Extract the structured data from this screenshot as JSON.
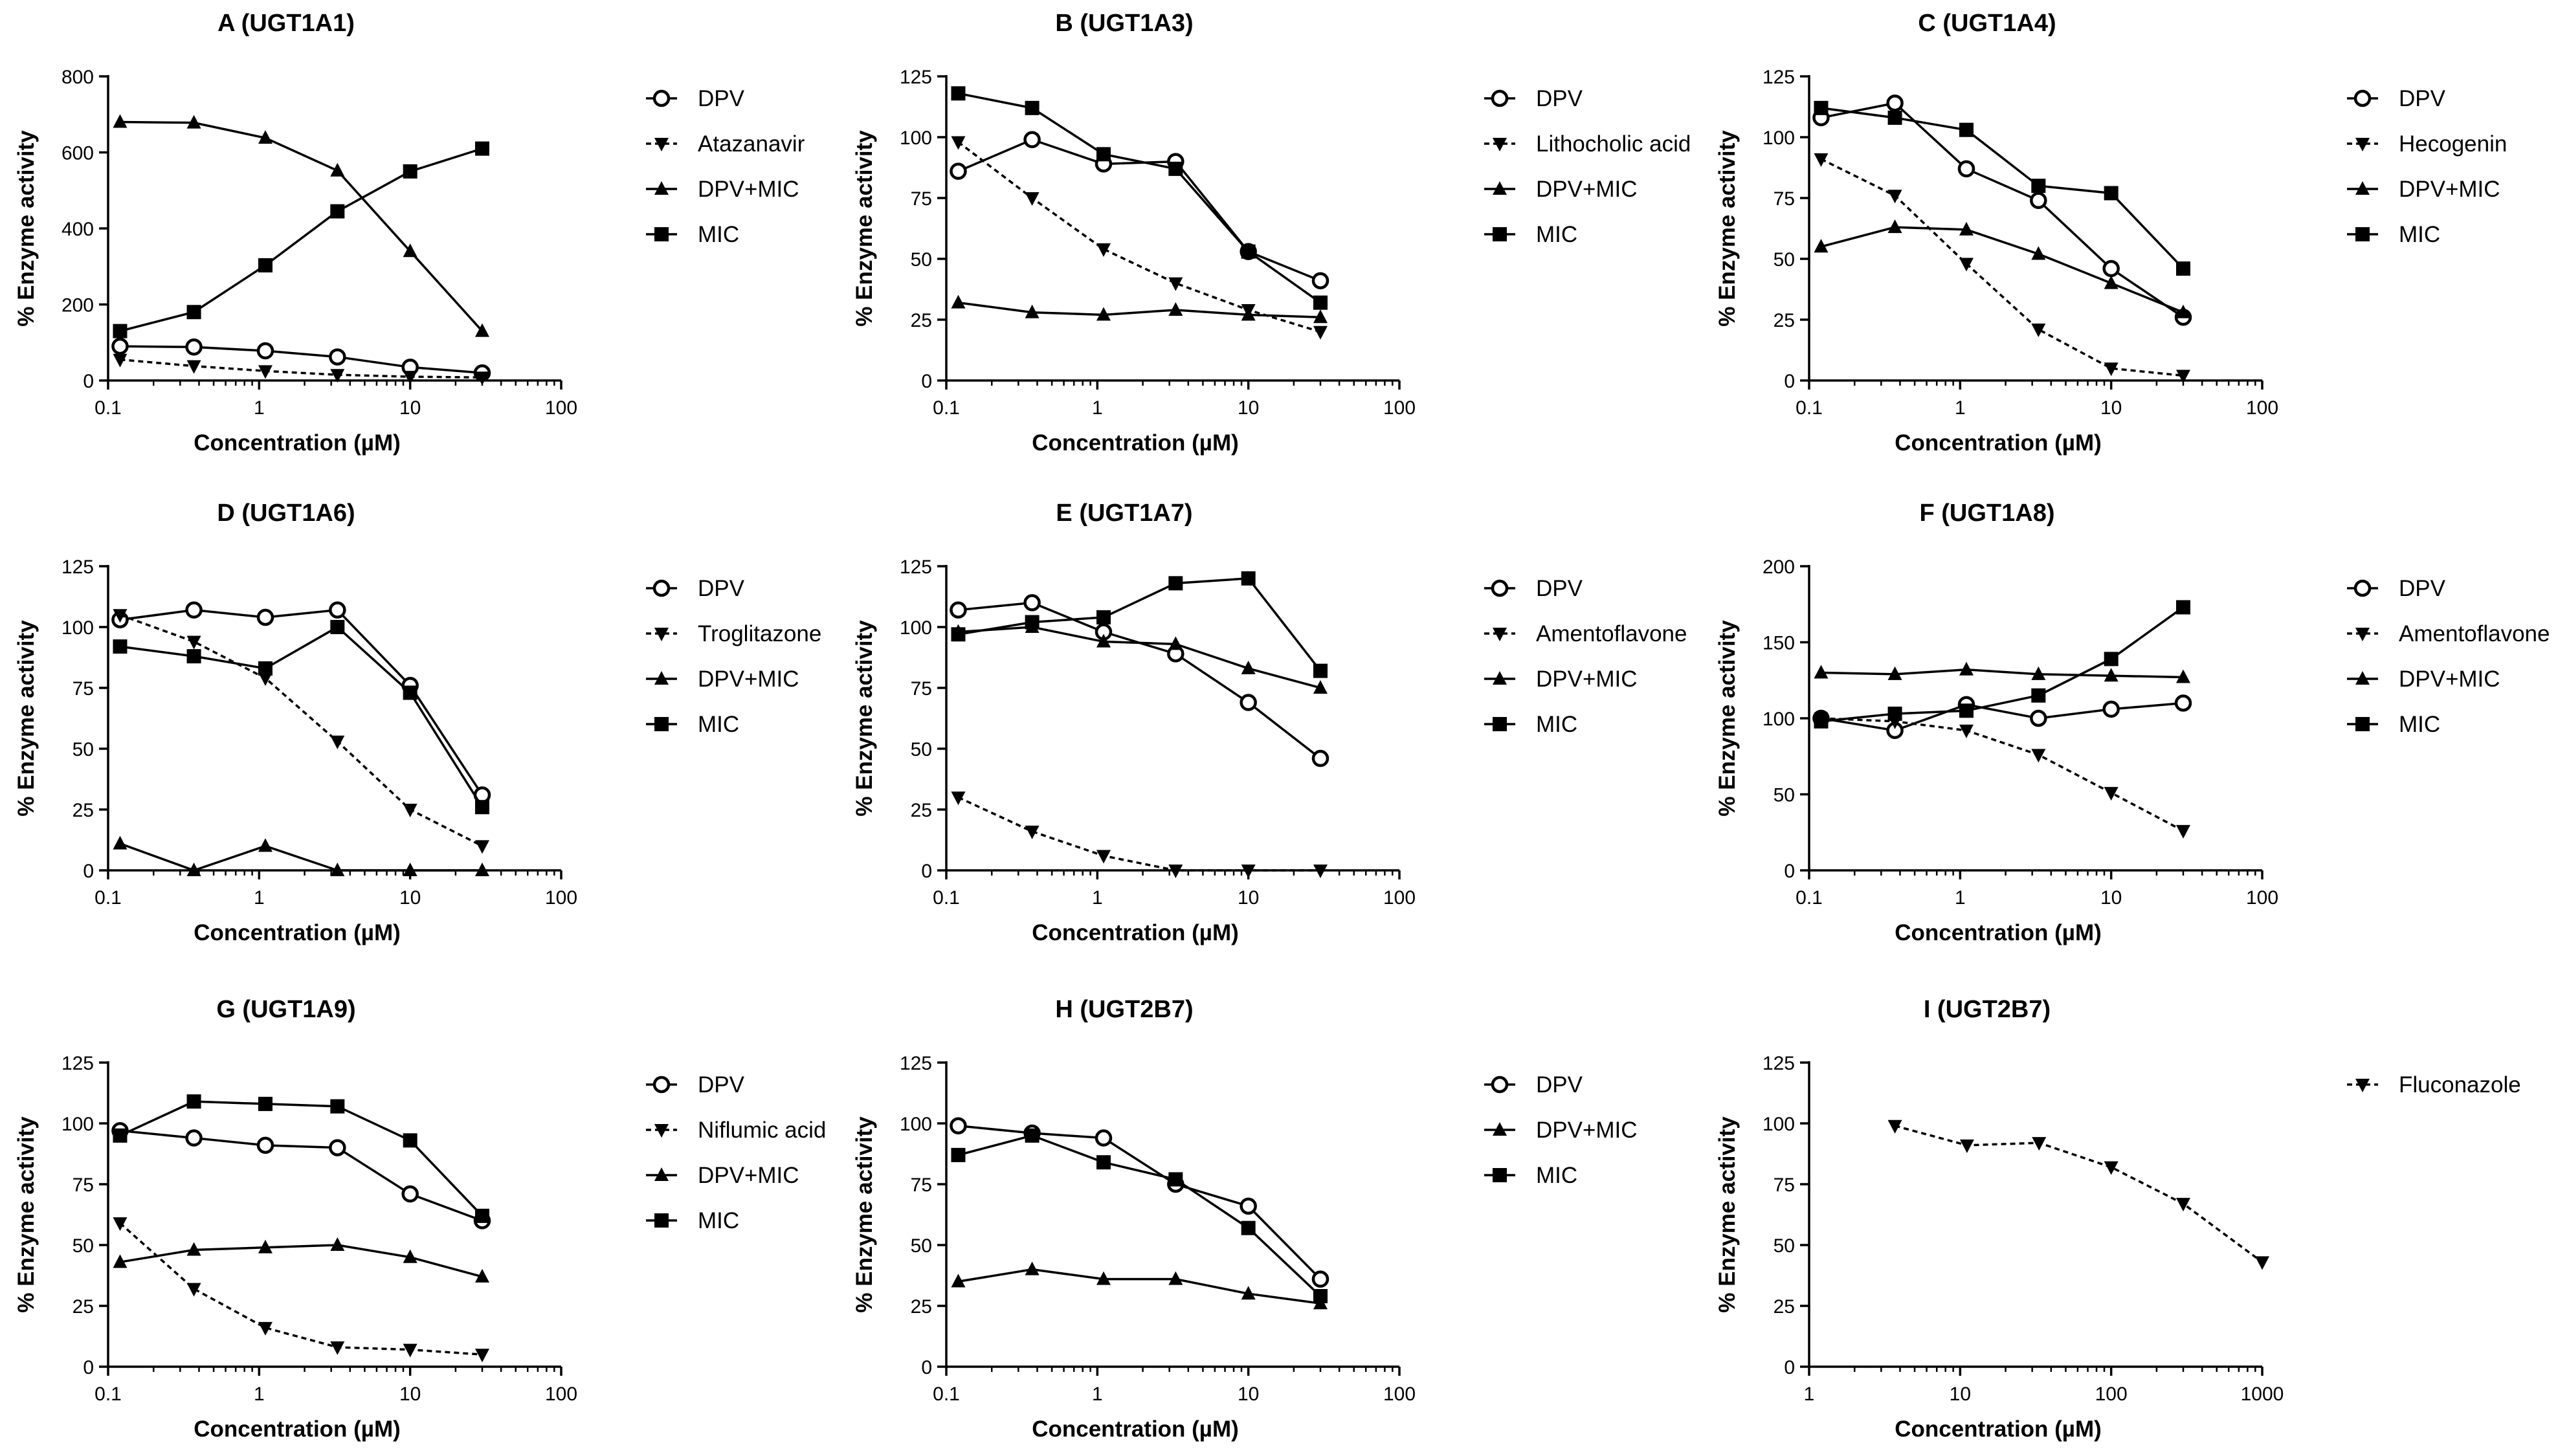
{
  "figure": {
    "chart_data": [
      {
        "type": "line",
        "title": "A (UGT1A1)",
        "xlabel": "Concentration (µM)",
        "ylabel": "% Enzyme activity",
        "xscale": "log",
        "xlim": [
          0.1,
          100
        ],
        "ylim": [
          0,
          800
        ],
        "xticks": [
          0.1,
          1,
          10,
          100
        ],
        "xtick_labels": [
          "0.1",
          "1",
          "10",
          "100"
        ],
        "yticks": [
          0,
          200,
          400,
          600,
          800
        ],
        "ytick_labels": [
          "0",
          "200",
          "400",
          "600",
          "800"
        ],
        "legend_position": "right",
        "x": [
          0.12,
          0.37,
          1.1,
          3.3,
          10,
          30
        ],
        "series": [
          {
            "name": "DPV",
            "marker": "open-circle",
            "line": "solid",
            "values": [
              90,
              88,
              78,
              62,
              35,
              20
            ]
          },
          {
            "name": "Atazanavir",
            "marker": "down-triangle",
            "line": "dotted",
            "values": [
              55,
              38,
              25,
              15,
              10,
              8
            ]
          },
          {
            "name": "DPV+MIC",
            "marker": "up-triangle",
            "line": "solid",
            "values": [
              680,
              678,
              638,
              552,
              340,
              130
            ]
          },
          {
            "name": "MIC",
            "marker": "square",
            "line": "solid",
            "values": [
              130,
              180,
              303,
              445,
              550,
              610
            ]
          }
        ]
      },
      {
        "type": "line",
        "title": "B (UGT1A3)",
        "xlabel": "Concentration (µM)",
        "ylabel": "% Enzyme activity",
        "xscale": "log",
        "xlim": [
          0.1,
          100
        ],
        "ylim": [
          0,
          125
        ],
        "xticks": [
          0.1,
          1,
          10,
          100
        ],
        "xtick_labels": [
          "0.1",
          "1",
          "10",
          "100"
        ],
        "yticks": [
          0,
          25,
          50,
          75,
          100,
          125
        ],
        "ytick_labels": [
          "0",
          "25",
          "50",
          "75",
          "100",
          "125"
        ],
        "legend_position": "right",
        "x": [
          0.12,
          0.37,
          1.1,
          3.3,
          10,
          30
        ],
        "series": [
          {
            "name": "DPV",
            "marker": "open-circle",
            "line": "solid",
            "values": [
              86,
              99,
              89,
              90,
              53,
              41
            ]
          },
          {
            "name": "Lithocholic acid",
            "marker": "down-triangle",
            "line": "dotted",
            "values": [
              98,
              75,
              54,
              40,
              29,
              20
            ]
          },
          {
            "name": "DPV+MIC",
            "marker": "up-triangle",
            "line": "solid",
            "values": [
              32,
              28,
              27,
              29,
              27,
              26
            ]
          },
          {
            "name": "MIC",
            "marker": "square",
            "line": "solid",
            "values": [
              118,
              112,
              93,
              87,
              53,
              32
            ]
          }
        ]
      },
      {
        "type": "line",
        "title": "C (UGT1A4)",
        "xlabel": "Concentration (µM)",
        "ylabel": "% Enzyme activity",
        "xscale": "log",
        "xlim": [
          0.1,
          100
        ],
        "ylim": [
          0,
          125
        ],
        "xticks": [
          0.1,
          1,
          10,
          100
        ],
        "xtick_labels": [
          "0.1",
          "1",
          "10",
          "100"
        ],
        "yticks": [
          0,
          25,
          50,
          75,
          100,
          125
        ],
        "ytick_labels": [
          "0",
          "25",
          "50",
          "75",
          "100",
          "125"
        ],
        "legend_position": "right",
        "x": [
          0.12,
          0.37,
          1.1,
          3.3,
          10,
          30
        ],
        "series": [
          {
            "name": "DPV",
            "marker": "open-circle",
            "line": "solid",
            "values": [
              108,
              114,
              87,
              74,
              46,
              26
            ]
          },
          {
            "name": "Hecogenin",
            "marker": "down-triangle",
            "line": "dotted",
            "values": [
              91,
              76,
              48,
              21,
              5,
              2
            ]
          },
          {
            "name": "DPV+MIC",
            "marker": "up-triangle",
            "line": "solid",
            "values": [
              55,
              63,
              62,
              52,
              40,
              28
            ]
          },
          {
            "name": "MIC",
            "marker": "square",
            "line": "solid",
            "values": [
              112,
              108,
              103,
              80,
              77,
              46
            ]
          }
        ]
      },
      {
        "type": "line",
        "title": "D (UGT1A6)",
        "xlabel": "Concentration (µM)",
        "ylabel": "% Enzyme activity",
        "xscale": "log",
        "xlim": [
          0.1,
          100
        ],
        "ylim": [
          0,
          125
        ],
        "xticks": [
          0.1,
          1,
          10,
          100
        ],
        "xtick_labels": [
          "0.1",
          "1",
          "10",
          "100"
        ],
        "yticks": [
          0,
          25,
          50,
          75,
          100,
          125
        ],
        "ytick_labels": [
          "0",
          "25",
          "50",
          "75",
          "100",
          "125"
        ],
        "legend_position": "right",
        "x": [
          0.12,
          0.37,
          1.1,
          3.3,
          10,
          30
        ],
        "series": [
          {
            "name": "DPV",
            "marker": "open-circle",
            "line": "solid",
            "values": [
              103,
              107,
              104,
              107,
              76,
              31
            ]
          },
          {
            "name": "Troglitazone",
            "marker": "down-triangle",
            "line": "dotted",
            "values": [
              105,
              94,
              79,
              53,
              25,
              10
            ]
          },
          {
            "name": "DPV+MIC",
            "marker": "up-triangle",
            "line": "solid",
            "values": [
              11,
              0,
              10,
              0,
              0,
              0
            ]
          },
          {
            "name": "MIC",
            "marker": "square",
            "line": "solid",
            "values": [
              92,
              88,
              83,
              100,
              73,
              26
            ]
          }
        ]
      },
      {
        "type": "line",
        "title": "E (UGT1A7)",
        "xlabel": "Concentration (µM)",
        "ylabel": "% Enzyme activity",
        "xscale": "log",
        "xlim": [
          0.1,
          100
        ],
        "ylim": [
          0,
          125
        ],
        "xticks": [
          0.1,
          1,
          10,
          100
        ],
        "xtick_labels": [
          "0.1",
          "1",
          "10",
          "100"
        ],
        "yticks": [
          0,
          25,
          50,
          75,
          100,
          125
        ],
        "ytick_labels": [
          "0",
          "25",
          "50",
          "75",
          "100",
          "125"
        ],
        "legend_position": "right",
        "x": [
          0.12,
          0.37,
          1.1,
          3.3,
          10,
          30
        ],
        "series": [
          {
            "name": "DPV",
            "marker": "open-circle",
            "line": "solid",
            "values": [
              107,
              110,
              98,
              89,
              69,
              46
            ]
          },
          {
            "name": "Amentoflavone",
            "marker": "down-triangle",
            "line": "dotted",
            "values": [
              30,
              16,
              6,
              0,
              0,
              0
            ]
          },
          {
            "name": "DPV+MIC",
            "marker": "up-triangle",
            "line": "solid",
            "values": [
              98,
              100,
              94,
              93,
              83,
              75
            ]
          },
          {
            "name": "MIC",
            "marker": "square",
            "line": "solid",
            "values": [
              97,
              102,
              104,
              118,
              120,
              82
            ]
          }
        ]
      },
      {
        "type": "line",
        "title": "F (UGT1A8)",
        "xlabel": "Concentration (µM)",
        "ylabel": "% Enzyme activity",
        "xscale": "log",
        "xlim": [
          0.1,
          100
        ],
        "ylim": [
          0,
          200
        ],
        "xticks": [
          0.1,
          1,
          10,
          100
        ],
        "xtick_labels": [
          "0.1",
          "1",
          "10",
          "100"
        ],
        "yticks": [
          0,
          50,
          100,
          150,
          200
        ],
        "ytick_labels": [
          "0",
          "50",
          "100",
          "150",
          "200"
        ],
        "legend_position": "right",
        "x": [
          0.12,
          0.37,
          1.1,
          3.3,
          10,
          30
        ],
        "series": [
          {
            "name": "DPV",
            "marker": "open-circle",
            "line": "solid",
            "values": [
              100,
              92,
              109,
              100,
              106,
              110
            ]
          },
          {
            "name": "Amentoflavone",
            "marker": "down-triangle",
            "line": "dotted",
            "values": [
              100,
              98,
              92,
              76,
              51,
              26
            ]
          },
          {
            "name": "DPV+MIC",
            "marker": "up-triangle",
            "line": "solid",
            "values": [
              130,
              129,
              132,
              129,
              128,
              127
            ]
          },
          {
            "name": "MIC",
            "marker": "square",
            "line": "solid",
            "values": [
              98,
              103,
              105,
              115,
              139,
              173
            ]
          }
        ]
      },
      {
        "type": "line",
        "title": "G (UGT1A9)",
        "xlabel": "Concentration (µM)",
        "ylabel": "% Enzyme activity",
        "xscale": "log",
        "xlim": [
          0.1,
          100
        ],
        "ylim": [
          0,
          125
        ],
        "xticks": [
          0.1,
          1,
          10,
          100
        ],
        "xtick_labels": [
          "0.1",
          "1",
          "10",
          "100"
        ],
        "yticks": [
          0,
          25,
          50,
          75,
          100,
          125
        ],
        "ytick_labels": [
          "0",
          "25",
          "50",
          "75",
          "100",
          "125"
        ],
        "legend_position": "right",
        "x": [
          0.12,
          0.37,
          1.1,
          3.3,
          10,
          30
        ],
        "series": [
          {
            "name": "DPV",
            "marker": "open-circle",
            "line": "solid",
            "values": [
              97,
              94,
              91,
              90,
              71,
              60
            ]
          },
          {
            "name": "Niflumic acid",
            "marker": "down-triangle",
            "line": "dotted",
            "values": [
              59,
              32,
              16,
              8,
              7,
              5
            ]
          },
          {
            "name": "DPV+MIC",
            "marker": "up-triangle",
            "line": "solid",
            "values": [
              43,
              48,
              49,
              50,
              45,
              37
            ]
          },
          {
            "name": "MIC",
            "marker": "square",
            "line": "solid",
            "values": [
              95,
              109,
              108,
              107,
              93,
              62
            ]
          }
        ]
      },
      {
        "type": "line",
        "title": "H (UGT2B7)",
        "xlabel": "Concentration (µM)",
        "ylabel": "% Enzyme activity",
        "xscale": "log",
        "xlim": [
          0.1,
          100
        ],
        "ylim": [
          0,
          125
        ],
        "xticks": [
          0.1,
          1,
          10,
          100
        ],
        "xtick_labels": [
          "0.1",
          "1",
          "10",
          "100"
        ],
        "yticks": [
          0,
          25,
          50,
          75,
          100,
          125
        ],
        "ytick_labels": [
          "0",
          "25",
          "50",
          "75",
          "100",
          "125"
        ],
        "legend_position": "right",
        "x": [
          0.12,
          0.37,
          1.1,
          3.3,
          10,
          30
        ],
        "series": [
          {
            "name": "DPV",
            "marker": "open-circle",
            "line": "solid",
            "values": [
              99,
              96,
              94,
              75,
              66,
              36
            ]
          },
          {
            "name": "DPV+MIC",
            "marker": "up-triangle",
            "line": "solid",
            "values": [
              35,
              40,
              36,
              36,
              30,
              26
            ]
          },
          {
            "name": "MIC",
            "marker": "square",
            "line": "solid",
            "values": [
              87,
              95,
              84,
              77,
              57,
              29
            ]
          }
        ]
      },
      {
        "type": "line",
        "title": "I (UGT2B7)",
        "xlabel": "Concentration (µM)",
        "ylabel": "% Enzyme activity",
        "xscale": "log",
        "xlim": [
          1,
          1000
        ],
        "ylim": [
          0,
          125
        ],
        "xticks": [
          1,
          10,
          100,
          1000
        ],
        "xtick_labels": [
          "1",
          "10",
          "100",
          "1000"
        ],
        "yticks": [
          0,
          25,
          50,
          75,
          100,
          125
        ],
        "ytick_labels": [
          "0",
          "25",
          "50",
          "75",
          "100",
          "125"
        ],
        "legend_position": "right",
        "x": [
          3.7,
          11.1,
          33.3,
          100,
          300,
          1000
        ],
        "series": [
          {
            "name": "Fluconazole",
            "marker": "down-triangle",
            "line": "dotted",
            "values": [
              99,
              91,
              92,
              82,
              67,
              43
            ]
          }
        ]
      }
    ]
  }
}
